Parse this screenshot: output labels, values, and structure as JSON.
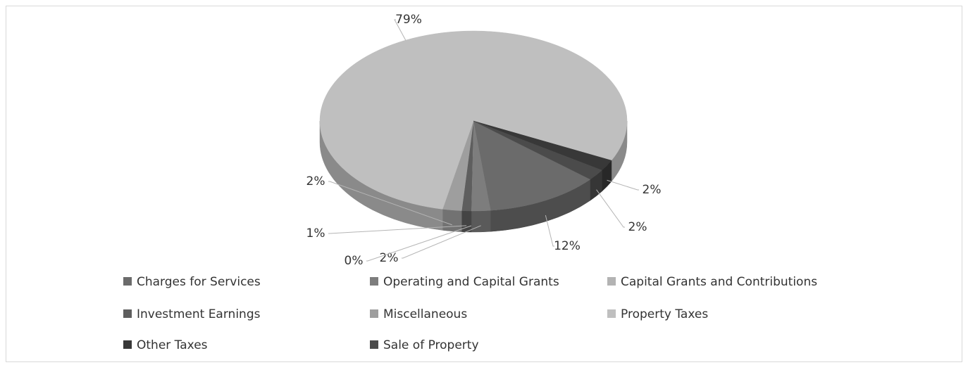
{
  "chart_data": {
    "type": "pie",
    "categories": [
      "Charges for Services",
      "Operating and Capital Grants",
      "Capital Grants and Contributions",
      "Investment Earnings",
      "Miscellaneous",
      "Property Taxes",
      "Other Taxes",
      "Sale of Property"
    ],
    "values": [
      12,
      2,
      0,
      1,
      2,
      79,
      2,
      2
    ],
    "value_labels": [
      "12%",
      "2%",
      "0%",
      "1%",
      "2%",
      "79%",
      "2%",
      "2%"
    ],
    "colors": [
      "#6b6b6b",
      "#7d7d7d",
      "#b3b3b3",
      "#5e5e5e",
      "#9e9e9e",
      "#bfbfbf",
      "#383838",
      "#4b4b4b"
    ],
    "legend": "bottom"
  }
}
